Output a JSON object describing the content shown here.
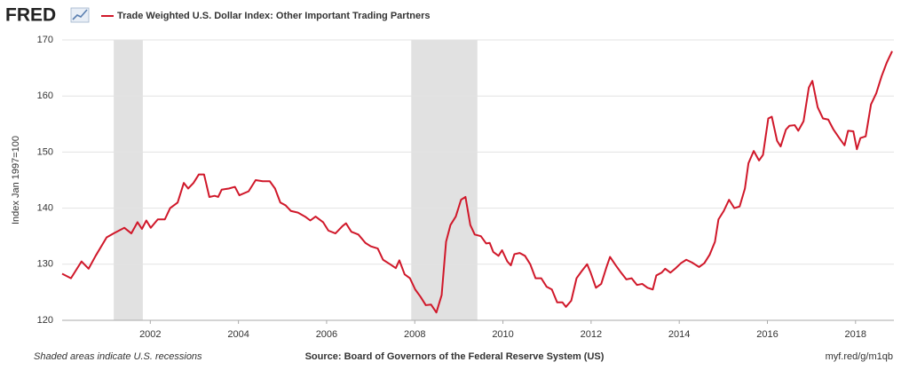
{
  "brand": "FRED",
  "chart_data": {
    "type": "line",
    "title": "Trade Weighted U.S. Dollar Index: Other Important Trading Partners",
    "y_label": "Index Jan 1997=100",
    "note": "Shaded areas indicate U.S. recessions",
    "source": "Source: Board of Governors of the Federal Reserve System (US)",
    "url": "myf.red/g/m1qb",
    "xlim": [
      2000,
      2018.87
    ],
    "ylim": [
      120,
      170
    ],
    "xticks": [
      2002,
      2004,
      2006,
      2008,
      2010,
      2012,
      2014,
      2016,
      2018
    ],
    "yticks": [
      120,
      130,
      140,
      150,
      160,
      170
    ],
    "grid": true,
    "recessions": [
      [
        2001.17,
        2001.83
      ],
      [
        2007.92,
        2009.42
      ]
    ],
    "x": [
      2000.0,
      2000.2,
      2000.44,
      2000.6,
      2000.76,
      2001.01,
      2001.17,
      2001.41,
      2001.57,
      2001.71,
      2001.81,
      2001.91,
      2002.01,
      2002.17,
      2002.33,
      2002.45,
      2002.62,
      2002.76,
      2002.86,
      2002.98,
      2003.1,
      2003.22,
      2003.34,
      2003.46,
      2003.54,
      2003.62,
      2003.78,
      2003.92,
      2004.02,
      2004.23,
      2004.39,
      2004.55,
      2004.71,
      2004.83,
      2004.95,
      2005.07,
      2005.19,
      2005.35,
      2005.51,
      2005.63,
      2005.75,
      2005.92,
      2006.04,
      2006.2,
      2006.36,
      2006.44,
      2006.56,
      2006.72,
      2006.88,
      2007.0,
      2007.16,
      2007.28,
      2007.44,
      2007.57,
      2007.65,
      2007.77,
      2007.89,
      2008.01,
      2008.13,
      2008.25,
      2008.37,
      2008.49,
      2008.61,
      2008.71,
      2008.81,
      2008.93,
      2009.05,
      2009.15,
      2009.26,
      2009.36,
      2009.5,
      2009.62,
      2009.7,
      2009.78,
      2009.9,
      2009.98,
      2010.1,
      2010.18,
      2010.26,
      2010.38,
      2010.5,
      2010.62,
      2010.74,
      2010.87,
      2010.99,
      2011.11,
      2011.23,
      2011.35,
      2011.43,
      2011.55,
      2011.67,
      2011.79,
      2011.91,
      2011.99,
      2012.11,
      2012.23,
      2012.35,
      2012.43,
      2012.56,
      2012.68,
      2012.8,
      2012.92,
      2013.04,
      2013.16,
      2013.28,
      2013.4,
      2013.48,
      2013.6,
      2013.68,
      2013.8,
      2013.92,
      2014.04,
      2014.16,
      2014.29,
      2014.45,
      2014.57,
      2014.69,
      2014.81,
      2014.89,
      2015.01,
      2015.13,
      2015.25,
      2015.37,
      2015.49,
      2015.57,
      2015.69,
      2015.81,
      2015.9,
      2016.02,
      2016.1,
      2016.22,
      2016.3,
      2016.42,
      2016.5,
      2016.62,
      2016.7,
      2016.82,
      2016.94,
      2017.02,
      2017.14,
      2017.26,
      2017.38,
      2017.5,
      2017.63,
      2017.75,
      2017.83,
      2017.95,
      2018.03,
      2018.11,
      2018.23,
      2018.35,
      2018.47,
      2018.59,
      2018.71,
      2018.83
    ],
    "series": [
      {
        "name": "Trade Weighted U.S. Dollar Index: Other Important Trading Partners",
        "color": "#d0182a",
        "values": [
          128.3,
          127.5,
          130.5,
          129.2,
          131.5,
          134.8,
          135.5,
          136.5,
          135.5,
          137.5,
          136.3,
          137.8,
          136.5,
          138,
          138,
          140,
          141,
          144.5,
          143.5,
          144.5,
          146,
          146,
          142,
          142.2,
          142,
          143.3,
          143.5,
          143.8,
          142.3,
          143,
          145,
          144.8,
          144.8,
          143.5,
          141,
          140.5,
          139.5,
          139.2,
          138.5,
          137.8,
          138.5,
          137.5,
          136,
          135.5,
          136.8,
          137.3,
          135.8,
          135.3,
          133.8,
          133.2,
          132.8,
          130.8,
          130,
          129.3,
          130.7,
          128.2,
          127.5,
          125.5,
          124.2,
          122.7,
          122.8,
          121.4,
          124.5,
          134,
          137,
          138.5,
          141.5,
          142,
          137,
          135.3,
          135,
          133.7,
          133.8,
          132.2,
          131.5,
          132.5,
          130.5,
          129.8,
          131.8,
          132,
          131.5,
          130,
          127.5,
          127.5,
          126,
          125.5,
          123.2,
          123.2,
          122.4,
          123.5,
          127.5,
          128.8,
          130,
          128.5,
          125.8,
          126.5,
          129.5,
          131.3,
          129.8,
          128.5,
          127.3,
          127.5,
          126.3,
          126.5,
          125.8,
          125.5,
          128,
          128.5,
          129.2,
          128.5,
          129.3,
          130.2,
          130.8,
          130.3,
          129.5,
          130.2,
          131.7,
          134,
          138,
          139.5,
          141.5,
          140,
          140.3,
          143.5,
          148,
          150.2,
          148.5,
          149.5,
          156,
          156.3,
          152,
          151,
          154,
          154.7,
          154.8,
          153.8,
          155.5,
          161.5,
          162.7,
          158,
          156,
          155.8,
          154,
          152.5,
          151.2,
          153.8,
          153.7,
          150.5,
          152.5,
          152.8,
          158.5,
          160.5,
          163.5,
          166,
          168
        ]
      }
    ]
  }
}
